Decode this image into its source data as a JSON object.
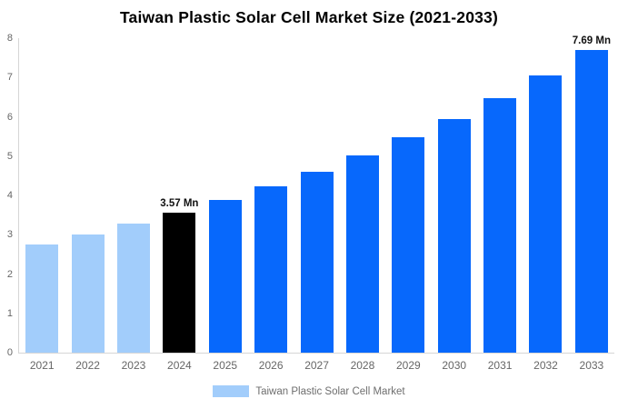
{
  "title": "Taiwan Plastic Solar Cell Market Size (2021-2033)",
  "legend": {
    "label": "Taiwan Plastic Solar Cell Market"
  },
  "colors": {
    "historical": "#a2cdfb",
    "current": "#000000",
    "forecast": "#0768fc",
    "axis_line": "#d6d6d6",
    "tick_text": "#666666",
    "value_label_text": "#111111",
    "legend_text": "#6e6e6e",
    "background": "#ffffff"
  },
  "chart_data": {
    "type": "bar",
    "title": "Taiwan Plastic Solar Cell Market Size (2021-2033)",
    "unit": "Mn",
    "xlabel": "",
    "ylabel": "",
    "ylim": [
      0,
      8
    ],
    "yticks": [
      "0",
      "1",
      "2",
      "3",
      "4",
      "5",
      "6",
      "7",
      "8"
    ],
    "grid": false,
    "legend_position": "bottom",
    "legend_entries": [
      "Taiwan Plastic Solar Cell Market"
    ],
    "categories": [
      "2021",
      "2022",
      "2023",
      "2024",
      "2025",
      "2026",
      "2027",
      "2028",
      "2029",
      "2030",
      "2031",
      "2032",
      "2033"
    ],
    "bars": [
      {
        "year": "2021",
        "value": 2.76,
        "role": "historical",
        "label": ""
      },
      {
        "year": "2022",
        "value": 3.01,
        "role": "historical",
        "label": ""
      },
      {
        "year": "2023",
        "value": 3.28,
        "role": "historical",
        "label": ""
      },
      {
        "year": "2024",
        "value": 3.57,
        "role": "current",
        "label": "3.57 Mn"
      },
      {
        "year": "2025",
        "value": 3.89,
        "role": "forecast",
        "label": ""
      },
      {
        "year": "2026",
        "value": 4.23,
        "role": "forecast",
        "label": ""
      },
      {
        "year": "2027",
        "value": 4.61,
        "role": "forecast",
        "label": ""
      },
      {
        "year": "2028",
        "value": 5.02,
        "role": "forecast",
        "label": ""
      },
      {
        "year": "2029",
        "value": 5.47,
        "role": "forecast",
        "label": ""
      },
      {
        "year": "2030",
        "value": 5.95,
        "role": "forecast",
        "label": ""
      },
      {
        "year": "2031",
        "value": 6.48,
        "role": "forecast",
        "label": ""
      },
      {
        "year": "2032",
        "value": 7.06,
        "role": "forecast",
        "label": ""
      },
      {
        "year": "2033",
        "value": 7.69,
        "role": "forecast",
        "label": "7.69 Mn"
      }
    ]
  }
}
